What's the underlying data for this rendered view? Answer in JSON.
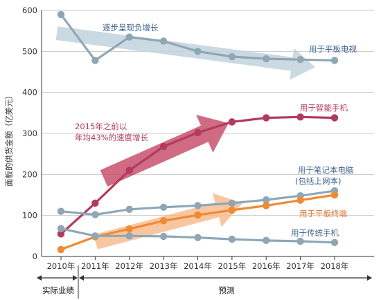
{
  "chart_data": {
    "type": "line",
    "ylabel": "面板的供货金额（亿美元）",
    "ylim": [
      0,
      600
    ],
    "yticks": [
      0,
      100,
      200,
      300,
      400,
      500,
      600
    ],
    "categories": [
      "2010年",
      "2011年",
      "2012年",
      "2013年",
      "2014年",
      "2015年",
      "2016年",
      "2017年",
      "2018年"
    ],
    "series": [
      {
        "name": "用于平板电视",
        "color": "#8fa7b5",
        "values": [
          590,
          478,
          535,
          525,
          500,
          487,
          482,
          480,
          478
        ]
      },
      {
        "name": "用于智能手机",
        "color": "#b23a5c",
        "values": [
          55,
          130,
          210,
          268,
          302,
          328,
          338,
          340,
          338
        ]
      },
      {
        "name": "用于笔记本电脑（包括上网本）",
        "color": "#8fa7b5",
        "values": [
          110,
          102,
          115,
          120,
          124,
          130,
          138,
          148,
          160
        ]
      },
      {
        "name": "用于平板终端",
        "color": "#f08a32",
        "values": [
          17,
          48,
          67,
          87,
          101,
          113,
          124,
          137,
          150
        ]
      },
      {
        "name": "用于传统手机",
        "color": "#8fa7b5",
        "values": [
          68,
          50,
          50,
          49,
          46,
          42,
          39,
          37,
          34
        ]
      }
    ],
    "annotations": {
      "decline": "逐步呈现负增长",
      "growth_line1": "2015年之前以",
      "growth_line2": "年均43%的速度增长"
    },
    "series_labels": {
      "tv": "用于平板电视",
      "smartphone": "用于智能手机",
      "notebook_line1": "用于笔记本电脑",
      "notebook_line2": "(包括上网本)",
      "tablet": "用于平板终端",
      "feature_phone": "用于传统手机"
    },
    "periods": {
      "actual": "实际业绩",
      "forecast": "预测"
    }
  }
}
